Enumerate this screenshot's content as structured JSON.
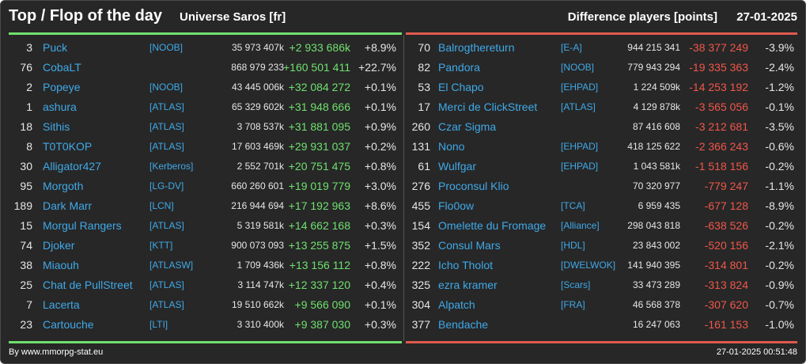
{
  "header": {
    "title": "Top / Flop of the day",
    "server": "Universe Saros [fr]",
    "subtitle": "Difference players [points]",
    "date": "27-01-2025"
  },
  "colors": {
    "gain": "#6fe06f",
    "loss": "#f0564a",
    "name": "#3fa9e8",
    "background": "#272727"
  },
  "top": [
    {
      "rank": "3",
      "name": "Puck",
      "ally": "[NOOB]",
      "points": "35 973 407k",
      "diff": "+2 933 686k",
      "pct": "+8.9%"
    },
    {
      "rank": "76",
      "name": "CobaLT",
      "ally": "",
      "points": "868 979 233",
      "diff": "+160 501 411",
      "pct": "+22.7%"
    },
    {
      "rank": "2",
      "name": "Popeye",
      "ally": "[NOOB]",
      "points": "43 445 006k",
      "diff": "+32 084 272",
      "pct": "+0.1%"
    },
    {
      "rank": "1",
      "name": "ashura",
      "ally": "[ATLAS]",
      "points": "65 329 602k",
      "diff": "+31 948 666",
      "pct": "+0.1%"
    },
    {
      "rank": "18",
      "name": "Sithis",
      "ally": "[ATLAS]",
      "points": "3 708 537k",
      "diff": "+31 881 095",
      "pct": "+0.9%"
    },
    {
      "rank": "8",
      "name": "T0T0KOP",
      "ally": "[ATLAS]",
      "points": "17 603 469k",
      "diff": "+29 931 037",
      "pct": "+0.2%"
    },
    {
      "rank": "30",
      "name": "Alligator427",
      "ally": "[Kerberos]",
      "points": "2 552 701k",
      "diff": "+20 751 475",
      "pct": "+0.8%"
    },
    {
      "rank": "95",
      "name": "Morgoth",
      "ally": "[LG-DV]",
      "points": "660 260 601",
      "diff": "+19 019 779",
      "pct": "+3.0%"
    },
    {
      "rank": "189",
      "name": "Dark Marr",
      "ally": "[LCN]",
      "points": "216 944 694",
      "diff": "+17 192 963",
      "pct": "+8.6%"
    },
    {
      "rank": "15",
      "name": "Morgul Rangers",
      "ally": "[ATLAS]",
      "points": "5 319 581k",
      "diff": "+14 662 168",
      "pct": "+0.3%"
    },
    {
      "rank": "74",
      "name": "Djoker",
      "ally": "[KTT]",
      "points": "900 073 093",
      "diff": "+13 255 875",
      "pct": "+1.5%"
    },
    {
      "rank": "38",
      "name": "Miaouh",
      "ally": "[ATLASW]",
      "points": "1 709 436k",
      "diff": "+13 156 112",
      "pct": "+0.8%"
    },
    {
      "rank": "25",
      "name": "Chat de PullStreet",
      "ally": "[ATLAS]",
      "points": "3 114 747k",
      "diff": "+12 337 120",
      "pct": "+0.4%"
    },
    {
      "rank": "7",
      "name": "Lacerta",
      "ally": "[ATLAS]",
      "points": "19 510 662k",
      "diff": "+9 566 090",
      "pct": "+0.1%"
    },
    {
      "rank": "23",
      "name": "Cartouche",
      "ally": "[LTI]",
      "points": "3 310 400k",
      "diff": "+9 387 030",
      "pct": "+0.3%"
    }
  ],
  "flop": [
    {
      "rank": "70",
      "name": "Balrogthereturn",
      "ally": "[E-A]",
      "points": "944 215 341",
      "diff": "-38 377 249",
      "pct": "-3.9%"
    },
    {
      "rank": "82",
      "name": "Pandora",
      "ally": "[NOOB]",
      "points": "779 943 294",
      "diff": "-19 335 363",
      "pct": "-2.4%"
    },
    {
      "rank": "53",
      "name": "El Chapo",
      "ally": "[EHPAD]",
      "points": "1 224 509k",
      "diff": "-14 253 192",
      "pct": "-1.2%"
    },
    {
      "rank": "17",
      "name": "Merci de ClickStreet",
      "ally": "[ATLAS]",
      "points": "4 129 878k",
      "diff": "-3 565 056",
      "pct": "-0.1%"
    },
    {
      "rank": "260",
      "name": "Czar Sigma",
      "ally": "",
      "points": "87 416 608",
      "diff": "-3 212 681",
      "pct": "-3.5%"
    },
    {
      "rank": "131",
      "name": "Nono",
      "ally": "[EHPAD]",
      "points": "418 125 622",
      "diff": "-2 366 243",
      "pct": "-0.6%"
    },
    {
      "rank": "61",
      "name": "Wulfgar",
      "ally": "[EHPAD]",
      "points": "1 043 581k",
      "diff": "-1 518 156",
      "pct": "-0.2%"
    },
    {
      "rank": "276",
      "name": "Proconsul Klio",
      "ally": "",
      "points": "70 320 977",
      "diff": "-779 247",
      "pct": "-1.1%"
    },
    {
      "rank": "455",
      "name": "Flo0ow",
      "ally": "[TCA]",
      "points": "6 959 435",
      "diff": "-677 128",
      "pct": "-8.9%"
    },
    {
      "rank": "154",
      "name": "Omelette du Fromage",
      "ally": "[Alliance]",
      "points": "298 043 818",
      "diff": "-638 526",
      "pct": "-0.2%"
    },
    {
      "rank": "352",
      "name": "Consul Mars",
      "ally": "[HDL]",
      "points": "23 843 002",
      "diff": "-520 156",
      "pct": "-2.1%"
    },
    {
      "rank": "222",
      "name": "Icho Tholot",
      "ally": "[DWELWOK]",
      "points": "141 940 395",
      "diff": "-314 801",
      "pct": "-0.2%"
    },
    {
      "rank": "325",
      "name": "ezra kramer",
      "ally": "[Scars]",
      "points": "33 473 289",
      "diff": "-313 824",
      "pct": "-0.9%"
    },
    {
      "rank": "304",
      "name": "Alpatch",
      "ally": "[FRA]",
      "points": "46 568 378",
      "diff": "-307 620",
      "pct": "-0.7%"
    },
    {
      "rank": "377",
      "name": "Bendache",
      "ally": "",
      "points": "16 247 063",
      "diff": "-161 153",
      "pct": "-1.0%"
    }
  ],
  "footer": {
    "source": "By www.mmorpg-stat.eu",
    "timestamp": "27-01-2025 00:51:48"
  }
}
